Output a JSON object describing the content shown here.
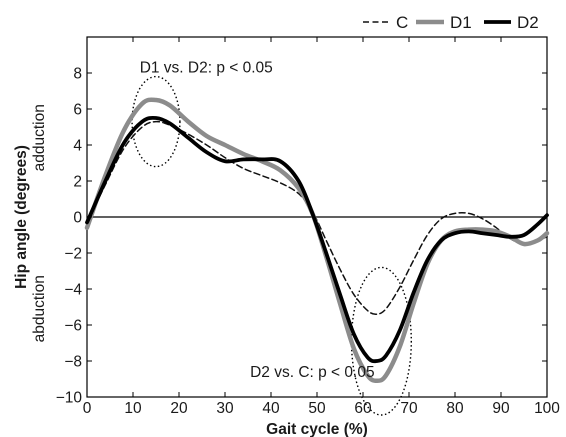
{
  "chart_data": {
    "type": "line",
    "xlabel": "Gait cycle (%)",
    "ylabel": "Hip angle (degrees)",
    "ylabel_top": "adduction",
    "ylabel_bottom": "abduction",
    "xlim": [
      0,
      100
    ],
    "ylim": [
      -10,
      10
    ],
    "xticks": [
      0,
      10,
      20,
      30,
      40,
      50,
      60,
      70,
      80,
      90,
      100
    ],
    "yticks": [
      -10,
      -8,
      -6,
      -4,
      -2,
      0,
      2,
      4,
      6,
      8
    ],
    "grid": false,
    "legend_position": "top-right",
    "zero_line": true,
    "annotations": [
      {
        "text": "D1 vs. D2: p < 0.05",
        "x": 14.5,
        "y": 8.3
      },
      {
        "text": "D2 vs. C: p < 0.05",
        "x": 38.5,
        "y": -8.6
      }
    ],
    "ellipses": [
      {
        "cx": 15,
        "cy": 5.3,
        "rx": 5.2,
        "ry": 2.5
      },
      {
        "cx": 64,
        "cy": -6.9,
        "rx": 6.5,
        "ry": 4.1
      }
    ],
    "series": [
      {
        "name": "C",
        "color": "#111111",
        "style": "dashed",
        "x": [
          0,
          4,
          8,
          12,
          15,
          18,
          22,
          26,
          30,
          34,
          38,
          42,
          46,
          49,
          52,
          55,
          58,
          61,
          63,
          65,
          68,
          71,
          74,
          77,
          80,
          83,
          86,
          89,
          92,
          95,
          98,
          100
        ],
        "y": [
          -0.3,
          1.8,
          3.8,
          5.0,
          5.3,
          5.1,
          4.6,
          4.0,
          3.3,
          2.7,
          2.3,
          1.9,
          1.3,
          0.3,
          -1.3,
          -2.9,
          -4.3,
          -5.2,
          -5.4,
          -5.1,
          -3.9,
          -2.4,
          -1.0,
          -0.1,
          0.2,
          0.2,
          -0.1,
          -0.6,
          -1.2,
          -1.5,
          -1.3,
          -1.1
        ]
      },
      {
        "name": "D1",
        "color": "#8c8c8c",
        "style": "solid",
        "x": [
          0,
          4,
          8,
          12,
          15,
          18,
          22,
          26,
          30,
          34,
          38,
          42,
          46,
          49,
          52,
          55,
          58,
          61,
          63,
          65,
          68,
          71,
          74,
          77,
          80,
          83,
          86,
          89,
          92,
          95,
          98,
          100
        ],
        "y": [
          -0.6,
          2.3,
          4.8,
          6.3,
          6.5,
          6.2,
          5.3,
          4.5,
          4.0,
          3.5,
          3.1,
          2.6,
          1.6,
          0.2,
          -2.2,
          -4.8,
          -7.3,
          -8.8,
          -9.1,
          -8.8,
          -7.2,
          -4.8,
          -2.6,
          -1.3,
          -0.8,
          -0.7,
          -0.7,
          -0.8,
          -1.1,
          -1.5,
          -1.3,
          -0.9
        ]
      },
      {
        "name": "D2",
        "color": "#000000",
        "style": "solid",
        "x": [
          0,
          4,
          8,
          12,
          15,
          18,
          22,
          26,
          30,
          34,
          38,
          42,
          46,
          49,
          52,
          55,
          58,
          61,
          63,
          65,
          68,
          71,
          74,
          77,
          80,
          83,
          86,
          89,
          92,
          95,
          98,
          100
        ],
        "y": [
          -0.3,
          2.0,
          4.1,
          5.3,
          5.5,
          5.2,
          4.4,
          3.6,
          3.1,
          3.2,
          3.2,
          3.1,
          2.0,
          0.2,
          -2.0,
          -4.3,
          -6.5,
          -7.8,
          -8.0,
          -7.7,
          -6.3,
          -4.2,
          -2.4,
          -1.3,
          -0.9,
          -0.8,
          -0.9,
          -1.0,
          -1.1,
          -1.0,
          -0.4,
          0.1
        ]
      }
    ]
  }
}
